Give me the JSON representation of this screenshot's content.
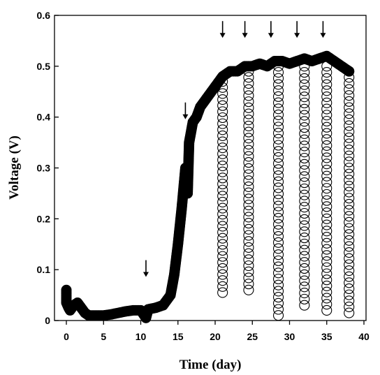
{
  "chart_data": {
    "type": "scatter",
    "title": "",
    "xlabel": "Time (day)",
    "ylabel": "Voltage (V)",
    "xlim": [
      0,
      40
    ],
    "ylim": [
      0,
      0.6
    ],
    "x_ticks": [
      0,
      5,
      10,
      15,
      20,
      25,
      30,
      35,
      40
    ],
    "y_ticks": [
      0,
      0.1,
      0.2,
      0.3,
      0.4,
      0.5,
      0.6
    ],
    "x_tick_labels": [
      "0",
      "5",
      "10",
      "15",
      "20",
      "25",
      "30",
      "35",
      "40"
    ],
    "y_tick_labels": [
      "0",
      "0.1",
      "0.2",
      "0.3",
      "0.4",
      "0.5",
      "0.6"
    ],
    "grid": false,
    "legend": "none",
    "marker": "open-circle",
    "series": [
      {
        "values_description": "voltage vs time",
        "points": [
          [
            0,
            0.06
          ],
          [
            0,
            0.045
          ],
          [
            0,
            0.035
          ],
          [
            0.3,
            0.025
          ],
          [
            0.5,
            0.02
          ],
          [
            1,
            0.03
          ],
          [
            1.5,
            0.035
          ],
          [
            2,
            0.025
          ],
          [
            2.5,
            0.015
          ],
          [
            3,
            0.01
          ],
          [
            4,
            0.01
          ],
          [
            5,
            0.01
          ],
          [
            6,
            0.012
          ],
          [
            7,
            0.015
          ],
          [
            8,
            0.018
          ],
          [
            9,
            0.02
          ],
          [
            10,
            0.02
          ],
          [
            10.7,
            0.005
          ],
          [
            11,
            0.022
          ],
          [
            12,
            0.025
          ],
          [
            13,
            0.03
          ],
          [
            14,
            0.05
          ],
          [
            14.5,
            0.09
          ],
          [
            15,
            0.15
          ],
          [
            15.5,
            0.22
          ],
          [
            16,
            0.3
          ],
          [
            16.3,
            0.25
          ],
          [
            16.5,
            0.35
          ],
          [
            17,
            0.39
          ],
          [
            17.5,
            0.4
          ],
          [
            18,
            0.42
          ],
          [
            19,
            0.44
          ],
          [
            20,
            0.46
          ],
          [
            21,
            0.48
          ],
          [
            22,
            0.49
          ],
          [
            23,
            0.49
          ],
          [
            24,
            0.5
          ],
          [
            25,
            0.5
          ],
          [
            26,
            0.505
          ],
          [
            27,
            0.5
          ],
          [
            28,
            0.51
          ],
          [
            29,
            0.51
          ],
          [
            30,
            0.505
          ],
          [
            31,
            0.51
          ],
          [
            32,
            0.515
          ],
          [
            33,
            0.51
          ],
          [
            34,
            0.515
          ],
          [
            35,
            0.52
          ],
          [
            36,
            0.51
          ],
          [
            37,
            0.5
          ],
          [
            38,
            0.49
          ]
        ]
      }
    ],
    "discharge_columns": [
      {
        "x": 21,
        "ymin": 0.055,
        "ymax": 0.47
      },
      {
        "x": 24.5,
        "ymin": 0.06,
        "ymax": 0.49
      },
      {
        "x": 28.5,
        "ymin": 0.01,
        "ymax": 0.5
      },
      {
        "x": 32,
        "ymin": 0.03,
        "ymax": 0.5
      },
      {
        "x": 35,
        "ymin": 0.02,
        "ymax": 0.5
      },
      {
        "x": 38,
        "ymin": 0.015,
        "ymax": 0.49
      }
    ],
    "annotations": {
      "arrows_at_x": [
        10.7,
        16,
        21,
        24,
        27.5,
        31,
        34.5
      ],
      "arrow_y": [
        0.105,
        0.415,
        0.575,
        0.575,
        0.575,
        0.575,
        0.575
      ]
    }
  }
}
